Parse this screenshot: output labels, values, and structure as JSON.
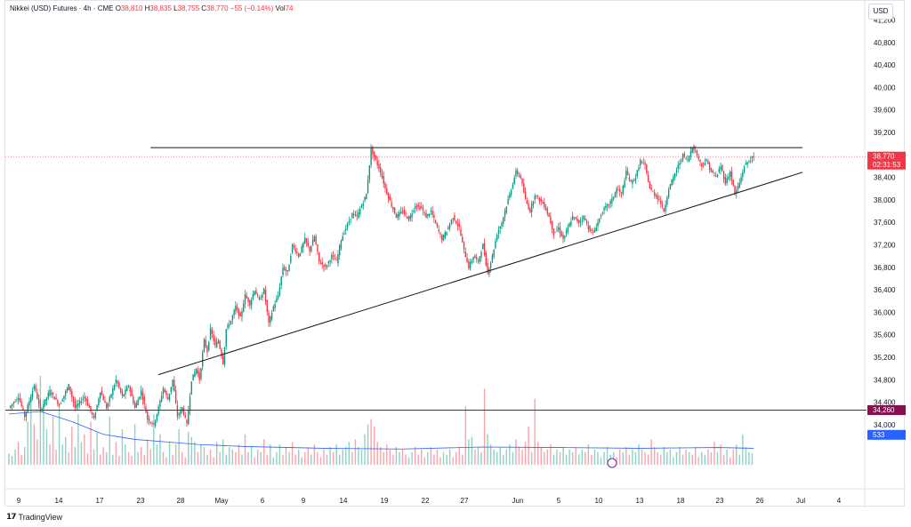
{
  "header": {
    "symbol": "Nikkei (USD) Futures · 4h · CME",
    "open_label": "O",
    "open": "38,810",
    "high_label": "H",
    "high": "38,835",
    "low_label": "L",
    "low": "38,755",
    "close_label": "C",
    "close": "38,770",
    "change": "−55 (−0.14%)",
    "vol_label": "Vol",
    "vol": "74"
  },
  "currency": "USD",
  "footer": {
    "brand": "TradingView"
  },
  "colors": {
    "up": "#089981",
    "down": "#f23645",
    "volume_ma": "#2962ff",
    "support_band": "#880e4f"
  },
  "chart_data": {
    "type": "candlestick",
    "ylim": [
      33600,
      41200
    ],
    "y_ticks": [
      41200,
      40800,
      40400,
      40000,
      39600,
      39200,
      38800,
      38400,
      38000,
      37600,
      37200,
      36800,
      36400,
      36000,
      35600,
      35200,
      34800,
      34400,
      34000
    ],
    "y_tick_labels": [
      "41,200",
      "40,800",
      "40,400",
      "40,000",
      "39,600",
      "39,200",
      "38,800",
      "38,400",
      "38,000",
      "37,600",
      "37,200",
      "36,800",
      "36,400",
      "36,000",
      "35,600",
      "35,200",
      "34,800",
      "34,400",
      "34,000"
    ],
    "x_tick_labels": [
      "9",
      "14",
      "17",
      "23",
      "28",
      "May",
      "6",
      "9",
      "14",
      "19",
      "22",
      "27",
      "Jun",
      "5",
      "10",
      "13",
      "18",
      "23",
      "26",
      "Jul",
      "4"
    ],
    "price_markers": [
      {
        "label": "38,770",
        "sub": "02:31:53",
        "value": 38770,
        "color": "#f23645"
      },
      {
        "label": "34,260",
        "value": 34260,
        "color": "#880e4f"
      },
      {
        "label": "533",
        "value": 33820,
        "color": "#2962ff"
      }
    ],
    "path": [
      [
        0,
        34300
      ],
      [
        6,
        34500
      ],
      [
        10,
        34150
      ],
      [
        16,
        34700
      ],
      [
        20,
        34250
      ],
      [
        26,
        34600
      ],
      [
        32,
        34350
      ],
      [
        38,
        34700
      ],
      [
        42,
        34300
      ],
      [
        48,
        34500
      ],
      [
        54,
        34100
      ],
      [
        58,
        34600
      ],
      [
        62,
        34300
      ],
      [
        68,
        34800
      ],
      [
        72,
        34500
      ],
      [
        76,
        34700
      ],
      [
        80,
        34300
      ],
      [
        84,
        34600
      ],
      [
        88,
        34100
      ],
      [
        92,
        34000
      ],
      [
        95,
        34300
      ],
      [
        98,
        34650
      ],
      [
        101,
        34450
      ],
      [
        104,
        34800
      ],
      [
        107,
        34150
      ],
      [
        110,
        34300
      ],
      [
        113,
        34000
      ],
      [
        116,
        34800
      ],
      [
        119,
        35000
      ],
      [
        121,
        34800
      ],
      [
        124,
        35500
      ],
      [
        126,
        35300
      ],
      [
        128,
        35700
      ],
      [
        131,
        35400
      ],
      [
        133,
        35500
      ],
      [
        136,
        35100
      ],
      [
        138,
        35700
      ],
      [
        141,
        35850
      ],
      [
        144,
        36100
      ],
      [
        147,
        35900
      ],
      [
        150,
        36300
      ],
      [
        153,
        36150
      ],
      [
        156,
        36400
      ],
      [
        159,
        36200
      ],
      [
        162,
        36400
      ],
      [
        165,
        35800
      ],
      [
        168,
        36100
      ],
      [
        171,
        36300
      ],
      [
        174,
        36800
      ],
      [
        177,
        36700
      ],
      [
        180,
        37200
      ],
      [
        184,
        37000
      ],
      [
        188,
        37300
      ],
      [
        191,
        37100
      ],
      [
        194,
        37350
      ],
      [
        197,
        36900
      ],
      [
        201,
        36800
      ],
      [
        205,
        37000
      ],
      [
        208,
        36900
      ],
      [
        211,
        37300
      ],
      [
        214,
        37500
      ],
      [
        218,
        37750
      ],
      [
        221,
        37700
      ],
      [
        224,
        37900
      ],
      [
        227,
        38100
      ],
      [
        230,
        38900
      ],
      [
        233,
        38700
      ],
      [
        236,
        38500
      ],
      [
        239,
        38200
      ],
      [
        243,
        37900
      ],
      [
        246,
        37700
      ],
      [
        250,
        37800
      ],
      [
        254,
        37650
      ],
      [
        258,
        37900
      ],
      [
        262,
        37850
      ],
      [
        265,
        37700
      ],
      [
        268,
        37800
      ],
      [
        272,
        37500
      ],
      [
        275,
        37300
      ],
      [
        278,
        37450
      ],
      [
        282,
        37700
      ],
      [
        286,
        37500
      ],
      [
        289,
        37100
      ],
      [
        292,
        36800
      ],
      [
        295,
        37000
      ],
      [
        298,
        36900
      ],
      [
        301,
        37200
      ],
      [
        304,
        36700
      ],
      [
        307,
        37000
      ],
      [
        310,
        37400
      ],
      [
        313,
        37600
      ],
      [
        316,
        37900
      ],
      [
        319,
        38200
      ],
      [
        322,
        38500
      ],
      [
        325,
        38400
      ],
      [
        328,
        38000
      ],
      [
        331,
        37800
      ],
      [
        334,
        38100
      ],
      [
        337,
        38000
      ],
      [
        340,
        37900
      ],
      [
        343,
        37700
      ],
      [
        346,
        37400
      ],
      [
        349,
        37500
      ],
      [
        352,
        37300
      ],
      [
        355,
        37500
      ],
      [
        358,
        37700
      ],
      [
        362,
        37600
      ],
      [
        365,
        37700
      ],
      [
        368,
        37500
      ],
      [
        371,
        37400
      ],
      [
        374,
        37600
      ],
      [
        377,
        37800
      ],
      [
        380,
        37900
      ],
      [
        383,
        38000
      ],
      [
        386,
        38200
      ],
      [
        389,
        38100
      ],
      [
        392,
        38500
      ],
      [
        395,
        38300
      ],
      [
        398,
        38400
      ],
      [
        401,
        38700
      ],
      [
        404,
        38600
      ],
      [
        407,
        38200
      ],
      [
        410,
        38100
      ],
      [
        413,
        38000
      ],
      [
        416,
        37800
      ],
      [
        419,
        38200
      ],
      [
        422,
        38400
      ],
      [
        425,
        38600
      ],
      [
        428,
        38800
      ],
      [
        431,
        38700
      ],
      [
        434,
        38950
      ],
      [
        437,
        38800
      ],
      [
        440,
        38600
      ],
      [
        443,
        38700
      ],
      [
        446,
        38500
      ],
      [
        449,
        38400
      ],
      [
        452,
        38600
      ],
      [
        455,
        38300
      ],
      [
        458,
        38500
      ],
      [
        461,
        38100
      ],
      [
        464,
        38300
      ],
      [
        467,
        38600
      ],
      [
        470,
        38700
      ],
      [
        473,
        38770
      ]
    ],
    "volume_ylim": [
      0,
      4200
    ],
    "volume_bars": [
      [
        0,
        450
      ],
      [
        2,
        350
      ],
      [
        4,
        600
      ],
      [
        6,
        900
      ],
      [
        8,
        400
      ],
      [
        10,
        700
      ],
      [
        12,
        1700
      ],
      [
        14,
        2800
      ],
      [
        16,
        1600
      ],
      [
        18,
        1000
      ],
      [
        20,
        3500
      ],
      [
        22,
        2600
      ],
      [
        24,
        1400
      ],
      [
        26,
        800
      ],
      [
        28,
        1900
      ],
      [
        30,
        600
      ],
      [
        32,
        2400
      ],
      [
        34,
        800
      ],
      [
        36,
        1100
      ],
      [
        38,
        500
      ],
      [
        40,
        1500
      ],
      [
        42,
        700
      ],
      [
        44,
        2000
      ],
      [
        46,
        900
      ],
      [
        48,
        1200
      ],
      [
        50,
        450
      ],
      [
        52,
        1700
      ],
      [
        54,
        600
      ],
      [
        56,
        1300
      ],
      [
        58,
        400
      ],
      [
        60,
        700
      ],
      [
        62,
        500
      ],
      [
        64,
        1900
      ],
      [
        66,
        400
      ],
      [
        68,
        900
      ],
      [
        70,
        350
      ],
      [
        72,
        1400
      ],
      [
        74,
        800
      ],
      [
        76,
        500
      ],
      [
        78,
        350
      ],
      [
        80,
        1600
      ],
      [
        82,
        500
      ],
      [
        84,
        700
      ],
      [
        86,
        400
      ],
      [
        88,
        1000
      ],
      [
        90,
        600
      ],
      [
        92,
        2000
      ],
      [
        94,
        800
      ],
      [
        96,
        1200
      ],
      [
        98,
        500
      ],
      [
        100,
        300
      ],
      [
        102,
        900
      ],
      [
        104,
        400
      ],
      [
        106,
        800
      ],
      [
        108,
        1400
      ],
      [
        110,
        500
      ],
      [
        112,
        300
      ],
      [
        114,
        1300
      ],
      [
        116,
        1100
      ],
      [
        118,
        900
      ],
      [
        120,
        500
      ],
      [
        122,
        800
      ],
      [
        124,
        700
      ],
      [
        126,
        400
      ],
      [
        128,
        600
      ],
      [
        130,
        300
      ],
      [
        132,
        900
      ],
      [
        134,
        500
      ],
      [
        136,
        1000
      ],
      [
        138,
        400
      ],
      [
        140,
        700
      ],
      [
        142,
        600
      ],
      [
        144,
        500
      ],
      [
        146,
        800
      ],
      [
        148,
        400
      ],
      [
        150,
        1200
      ],
      [
        152,
        500
      ],
      [
        154,
        700
      ],
      [
        156,
        300
      ],
      [
        158,
        600
      ],
      [
        160,
        500
      ],
      [
        162,
        1000
      ],
      [
        164,
        400
      ],
      [
        166,
        800
      ],
      [
        168,
        300
      ],
      [
        170,
        500
      ],
      [
        172,
        800
      ],
      [
        174,
        400
      ],
      [
        176,
        700
      ],
      [
        178,
        500
      ],
      [
        180,
        900
      ],
      [
        182,
        400
      ],
      [
        184,
        600
      ],
      [
        186,
        300
      ],
      [
        188,
        500
      ],
      [
        190,
        700
      ],
      [
        192,
        400
      ],
      [
        194,
        800
      ],
      [
        196,
        500
      ],
      [
        198,
        300
      ],
      [
        200,
        600
      ],
      [
        202,
        400
      ],
      [
        204,
        700
      ],
      [
        206,
        500
      ],
      [
        208,
        800
      ],
      [
        210,
        400
      ],
      [
        212,
        600
      ],
      [
        214,
        700
      ],
      [
        216,
        900
      ],
      [
        218,
        500
      ],
      [
        220,
        1000
      ],
      [
        222,
        700
      ],
      [
        224,
        600
      ],
      [
        226,
        1200
      ],
      [
        228,
        1600
      ],
      [
        230,
        1800
      ],
      [
        232,
        1500
      ],
      [
        234,
        900
      ],
      [
        236,
        700
      ],
      [
        238,
        500
      ],
      [
        240,
        800
      ],
      [
        242,
        600
      ],
      [
        244,
        400
      ],
      [
        246,
        700
      ],
      [
        248,
        500
      ],
      [
        250,
        600
      ],
      [
        252,
        400
      ],
      [
        254,
        300
      ],
      [
        256,
        500
      ],
      [
        258,
        700
      ],
      [
        260,
        400
      ],
      [
        262,
        600
      ],
      [
        264,
        300
      ],
      [
        266,
        500
      ],
      [
        268,
        700
      ],
      [
        270,
        400
      ],
      [
        272,
        600
      ],
      [
        274,
        300
      ],
      [
        276,
        500
      ],
      [
        278,
        400
      ],
      [
        280,
        600
      ],
      [
        282,
        300
      ],
      [
        284,
        500
      ],
      [
        286,
        700
      ],
      [
        288,
        400
      ],
      [
        290,
        2300
      ],
      [
        292,
        1000
      ],
      [
        294,
        1100
      ],
      [
        296,
        600
      ],
      [
        298,
        700
      ],
      [
        300,
        500
      ],
      [
        302,
        3000
      ],
      [
        304,
        1200
      ],
      [
        306,
        800
      ],
      [
        308,
        600
      ],
      [
        310,
        500
      ],
      [
        312,
        700
      ],
      [
        314,
        400
      ],
      [
        316,
        600
      ],
      [
        318,
        800
      ],
      [
        320,
        500
      ],
      [
        322,
        1000
      ],
      [
        324,
        700
      ],
      [
        326,
        600
      ],
      [
        328,
        900
      ],
      [
        330,
        1500
      ],
      [
        332,
        500
      ],
      [
        334,
        2600
      ],
      [
        336,
        900
      ],
      [
        338,
        700
      ],
      [
        340,
        500
      ],
      [
        342,
        600
      ],
      [
        344,
        800
      ],
      [
        346,
        400
      ],
      [
        348,
        600
      ],
      [
        350,
        500
      ],
      [
        352,
        700
      ],
      [
        354,
        400
      ],
      [
        356,
        600
      ],
      [
        358,
        500
      ],
      [
        360,
        700
      ],
      [
        362,
        400
      ],
      [
        364,
        600
      ],
      [
        366,
        500
      ],
      [
        368,
        800
      ],
      [
        370,
        400
      ],
      [
        372,
        600
      ],
      [
        374,
        500
      ],
      [
        376,
        300
      ],
      [
        378,
        500
      ],
      [
        380,
        700
      ],
      [
        382,
        400
      ],
      [
        384,
        500
      ],
      [
        386,
        300
      ],
      [
        388,
        600
      ],
      [
        390,
        500
      ],
      [
        392,
        700
      ],
      [
        394,
        400
      ],
      [
        396,
        600
      ],
      [
        398,
        500
      ],
      [
        400,
        800
      ],
      [
        402,
        600
      ],
      [
        404,
        500
      ],
      [
        406,
        400
      ],
      [
        408,
        1000
      ],
      [
        410,
        700
      ],
      [
        412,
        500
      ],
      [
        414,
        400
      ],
      [
        416,
        700
      ],
      [
        418,
        500
      ],
      [
        420,
        600
      ],
      [
        422,
        300
      ],
      [
        424,
        500
      ],
      [
        426,
        700
      ],
      [
        428,
        400
      ],
      [
        430,
        600
      ],
      [
        432,
        500
      ],
      [
        434,
        400
      ],
      [
        436,
        700
      ],
      [
        438,
        300
      ],
      [
        440,
        500
      ],
      [
        442,
        400
      ],
      [
        444,
        600
      ],
      [
        446,
        500
      ],
      [
        448,
        900
      ],
      [
        450,
        500
      ],
      [
        452,
        800
      ],
      [
        454,
        400
      ],
      [
        456,
        600
      ],
      [
        458,
        300
      ],
      [
        460,
        600
      ],
      [
        462,
        800
      ],
      [
        464,
        400
      ],
      [
        466,
        1200
      ],
      [
        468,
        700
      ],
      [
        470,
        500
      ],
      [
        472,
        450
      ]
    ],
    "volume_ma": [
      [
        0,
        2000
      ],
      [
        20,
        2100
      ],
      [
        40,
        1700
      ],
      [
        60,
        1200
      ],
      [
        80,
        1000
      ],
      [
        100,
        900
      ],
      [
        120,
        800
      ],
      [
        150,
        720
      ],
      [
        200,
        650
      ],
      [
        250,
        620
      ],
      [
        300,
        700
      ],
      [
        350,
        680
      ],
      [
        400,
        650
      ],
      [
        450,
        680
      ],
      [
        473,
        650
      ]
    ],
    "drawings": [
      {
        "kind": "horizontal_resistance",
        "from_idx": 90,
        "to_idx": 510,
        "value": 38930
      },
      {
        "kind": "rising_support",
        "from": [
          97,
          34890
        ],
        "to": [
          510,
          38490
        ]
      },
      {
        "kind": "horizontal_support",
        "value": 34260
      }
    ]
  }
}
